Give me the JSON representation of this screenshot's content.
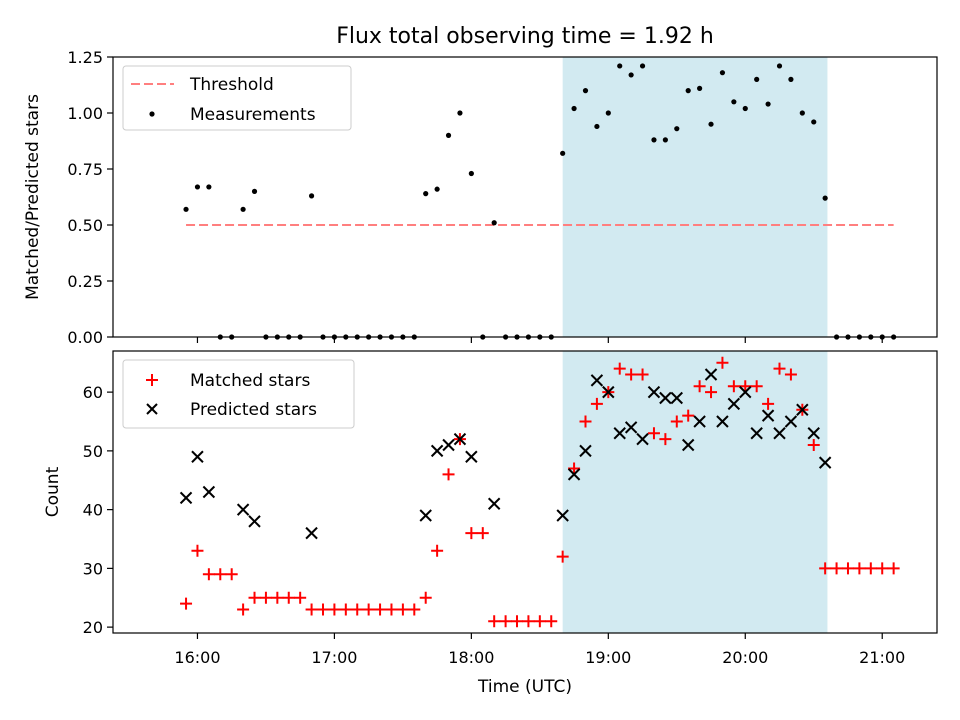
{
  "chart_data": {
    "title": "Flux total observing time = 1.92 h",
    "xlabel": "Time (UTC)",
    "x_ticks": [
      "16:00",
      "17:00",
      "18:00",
      "19:00",
      "20:00",
      "21:00"
    ],
    "shaded_interval": {
      "start": "18:40",
      "end": "20:36",
      "color": "#add8e6"
    },
    "panels": [
      {
        "type": "scatter",
        "ylabel": "Matched/Predicted stars",
        "ylim": [
          0,
          1.25
        ],
        "y_ticks": [
          "0.00",
          "0.25",
          "0.50",
          "0.75",
          "1.00",
          "1.25"
        ],
        "legend_position": "upper-left",
        "threshold": {
          "name": "Threshold",
          "value": 0.5,
          "x_start": "15:55",
          "x_end": "21:05",
          "color": "#ff7f7f",
          "style": "dashed"
        },
        "series": [
          {
            "name": "Measurements",
            "color": "#000000",
            "marker": "dot",
            "points": [
              [
                "15:55",
                0.57
              ],
              [
                "16:00",
                0.67
              ],
              [
                "16:05",
                0.67
              ],
              [
                "16:10",
                0.0
              ],
              [
                "16:15",
                0.0
              ],
              [
                "16:20",
                0.57
              ],
              [
                "16:25",
                0.65
              ],
              [
                "16:30",
                0.0
              ],
              [
                "16:35",
                0.0
              ],
              [
                "16:40",
                0.0
              ],
              [
                "16:45",
                0.0
              ],
              [
                "16:50",
                0.63
              ],
              [
                "16:55",
                0.0
              ],
              [
                "17:00",
                0.0
              ],
              [
                "17:05",
                0.0
              ],
              [
                "17:10",
                0.0
              ],
              [
                "17:15",
                0.0
              ],
              [
                "17:20",
                0.0
              ],
              [
                "17:25",
                0.0
              ],
              [
                "17:30",
                0.0
              ],
              [
                "17:35",
                0.0
              ],
              [
                "17:40",
                0.64
              ],
              [
                "17:45",
                0.66
              ],
              [
                "17:50",
                0.9
              ],
              [
                "17:55",
                1.0
              ],
              [
                "18:00",
                0.73
              ],
              [
                "18:05",
                0.0
              ],
              [
                "18:10",
                0.51
              ],
              [
                "18:15",
                0.0
              ],
              [
                "18:20",
                0.0
              ],
              [
                "18:25",
                0.0
              ],
              [
                "18:30",
                0.0
              ],
              [
                "18:35",
                0.0
              ],
              [
                "18:40",
                0.82
              ],
              [
                "18:45",
                1.02
              ],
              [
                "18:50",
                1.1
              ],
              [
                "18:55",
                0.94
              ],
              [
                "19:00",
                1.0
              ],
              [
                "19:05",
                1.21
              ],
              [
                "19:10",
                1.17
              ],
              [
                "19:15",
                1.21
              ],
              [
                "19:20",
                0.88
              ],
              [
                "19:25",
                0.88
              ],
              [
                "19:30",
                0.93
              ],
              [
                "19:35",
                1.1
              ],
              [
                "19:40",
                1.11
              ],
              [
                "19:45",
                0.95
              ],
              [
                "19:50",
                1.18
              ],
              [
                "19:55",
                1.05
              ],
              [
                "20:00",
                1.02
              ],
              [
                "20:05",
                1.15
              ],
              [
                "20:10",
                1.04
              ],
              [
                "20:15",
                1.21
              ],
              [
                "20:20",
                1.15
              ],
              [
                "20:25",
                1.0
              ],
              [
                "20:30",
                0.96
              ],
              [
                "20:35",
                0.62
              ],
              [
                "20:40",
                0.0
              ],
              [
                "20:45",
                0.0
              ],
              [
                "20:50",
                0.0
              ],
              [
                "20:55",
                0.0
              ],
              [
                "21:00",
                0.0
              ],
              [
                "21:05",
                0.0
              ]
            ]
          }
        ]
      },
      {
        "type": "scatter",
        "ylabel": "Count",
        "ylim": [
          19,
          67
        ],
        "y_ticks": [
          "20",
          "30",
          "40",
          "50",
          "60"
        ],
        "legend_position": "upper-left",
        "series": [
          {
            "name": "Matched stars",
            "color": "#ff0000",
            "marker": "plus",
            "points": [
              [
                "15:55",
                24
              ],
              [
                "16:00",
                33
              ],
              [
                "16:05",
                29
              ],
              [
                "16:10",
                29
              ],
              [
                "16:15",
                29
              ],
              [
                "16:20",
                23
              ],
              [
                "16:25",
                25
              ],
              [
                "16:30",
                25
              ],
              [
                "16:35",
                25
              ],
              [
                "16:40",
                25
              ],
              [
                "16:45",
                25
              ],
              [
                "16:50",
                23
              ],
              [
                "16:55",
                23
              ],
              [
                "17:00",
                23
              ],
              [
                "17:05",
                23
              ],
              [
                "17:10",
                23
              ],
              [
                "17:15",
                23
              ],
              [
                "17:20",
                23
              ],
              [
                "17:25",
                23
              ],
              [
                "17:30",
                23
              ],
              [
                "17:35",
                23
              ],
              [
                "17:40",
                25
              ],
              [
                "17:45",
                33
              ],
              [
                "17:50",
                46
              ],
              [
                "17:55",
                52
              ],
              [
                "18:00",
                36
              ],
              [
                "18:05",
                36
              ],
              [
                "18:10",
                21
              ],
              [
                "18:15",
                21
              ],
              [
                "18:20",
                21
              ],
              [
                "18:25",
                21
              ],
              [
                "18:30",
                21
              ],
              [
                "18:35",
                21
              ],
              [
                "18:40",
                32
              ],
              [
                "18:45",
                47
              ],
              [
                "18:50",
                55
              ],
              [
                "18:55",
                58
              ],
              [
                "19:00",
                60
              ],
              [
                "19:05",
                64
              ],
              [
                "19:10",
                63
              ],
              [
                "19:15",
                63
              ],
              [
                "19:20",
                53
              ],
              [
                "19:25",
                52
              ],
              [
                "19:30",
                55
              ],
              [
                "19:35",
                56
              ],
              [
                "19:40",
                61
              ],
              [
                "19:45",
                60
              ],
              [
                "19:50",
                65
              ],
              [
                "19:55",
                61
              ],
              [
                "20:00",
                61
              ],
              [
                "20:05",
                61
              ],
              [
                "20:10",
                58
              ],
              [
                "20:15",
                64
              ],
              [
                "20:20",
                63
              ],
              [
                "20:25",
                57
              ],
              [
                "20:30",
                51
              ],
              [
                "20:35",
                30
              ],
              [
                "20:40",
                30
              ],
              [
                "20:45",
                30
              ],
              [
                "20:50",
                30
              ],
              [
                "20:55",
                30
              ],
              [
                "21:00",
                30
              ],
              [
                "21:05",
                30
              ]
            ]
          },
          {
            "name": "Predicted stars",
            "color": "#000000",
            "marker": "x",
            "points": [
              [
                "15:55",
                42
              ],
              [
                "16:00",
                49
              ],
              [
                "16:05",
                43
              ],
              [
                "16:20",
                40
              ],
              [
                "16:25",
                38
              ],
              [
                "16:50",
                36
              ],
              [
                "17:40",
                39
              ],
              [
                "17:45",
                50
              ],
              [
                "17:50",
                51
              ],
              [
                "17:55",
                52
              ],
              [
                "18:00",
                49
              ],
              [
                "18:10",
                41
              ],
              [
                "18:40",
                39
              ],
              [
                "18:45",
                46
              ],
              [
                "18:50",
                50
              ],
              [
                "18:55",
                62
              ],
              [
                "19:00",
                60
              ],
              [
                "19:05",
                53
              ],
              [
                "19:10",
                54
              ],
              [
                "19:15",
                52
              ],
              [
                "19:20",
                60
              ],
              [
                "19:25",
                59
              ],
              [
                "19:30",
                59
              ],
              [
                "19:35",
                51
              ],
              [
                "19:40",
                55
              ],
              [
                "19:45",
                63
              ],
              [
                "19:50",
                55
              ],
              [
                "19:55",
                58
              ],
              [
                "20:00",
                60
              ],
              [
                "20:05",
                53
              ],
              [
                "20:10",
                56
              ],
              [
                "20:15",
                53
              ],
              [
                "20:20",
                55
              ],
              [
                "20:25",
                57
              ],
              [
                "20:30",
                53
              ],
              [
                "20:35",
                48
              ]
            ]
          }
        ]
      }
    ]
  }
}
